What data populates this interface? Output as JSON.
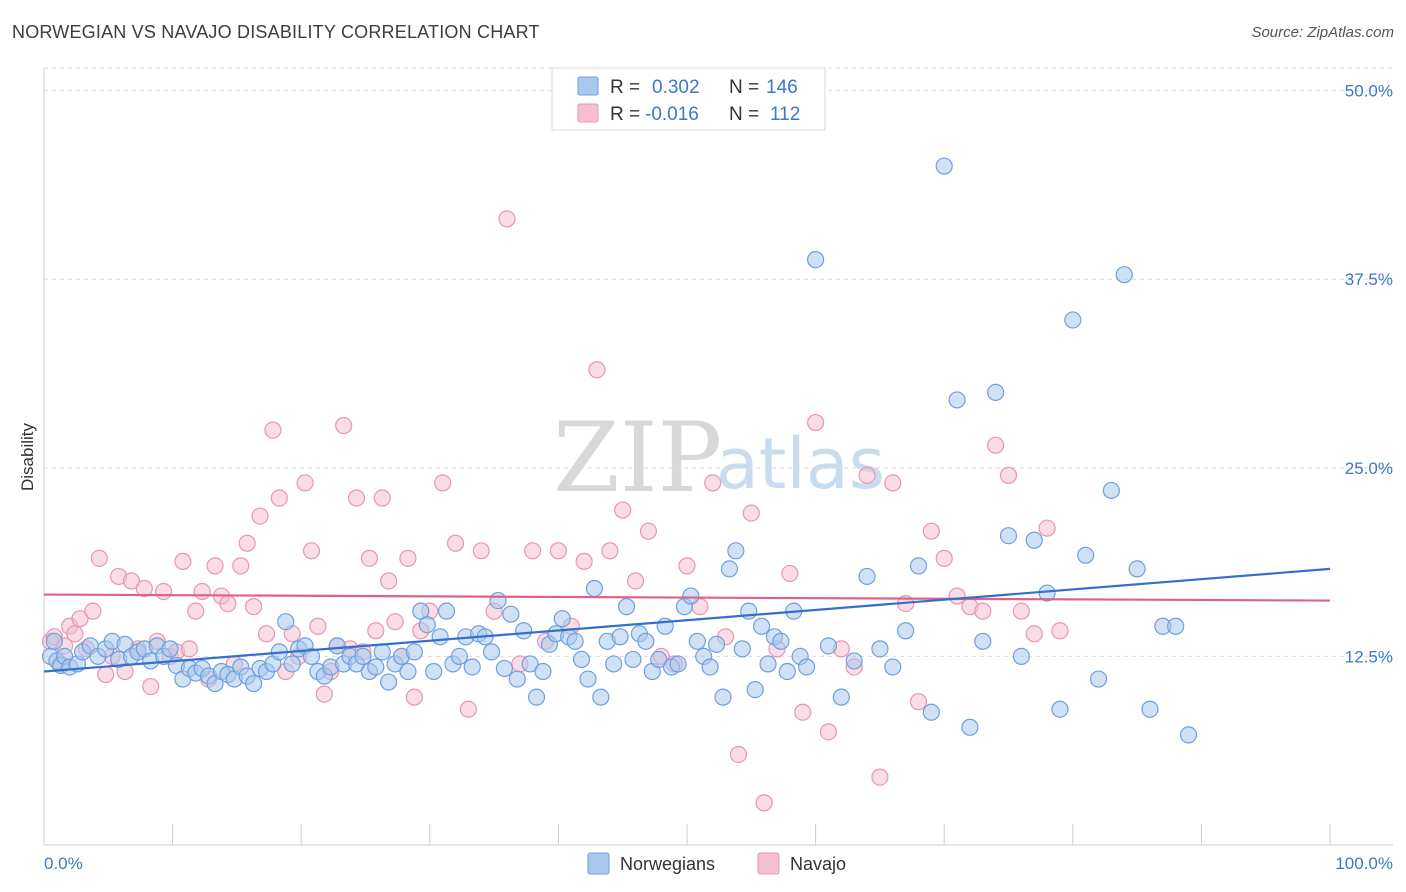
{
  "title": "NORWEGIAN VS NAVAJO DISABILITY CORRELATION CHART",
  "source": "Source: ZipAtlas.com",
  "watermark": {
    "zip": "ZIP",
    "atlas": "atlas"
  },
  "chart_data": {
    "type": "scatter",
    "ylabel": "Disability",
    "x_min_label": "0.0%",
    "x_max_label": "100.0%",
    "xlim": [
      0,
      100
    ],
    "ylim": [
      0,
      51.5
    ],
    "yticks": [
      {
        "value": 12.5,
        "label": "12.5%"
      },
      {
        "value": 25.0,
        "label": "25.0%"
      },
      {
        "value": 37.5,
        "label": "37.5%"
      },
      {
        "value": 50.0,
        "label": "50.0%"
      }
    ],
    "legend_stats": [
      {
        "r_label": "R =",
        "r_value": "0.302",
        "n_label": "N =",
        "n_value": "146",
        "color": "#5b9bd5",
        "fill": "#b7d3f2"
      },
      {
        "r_label": "R =",
        "r_value": "-0.016",
        "n_label": "N =",
        "n_value": "112",
        "color": "#e8799c",
        "fill": "#f7c1d2"
      }
    ],
    "series": [
      {
        "name": "Norwegians",
        "color": "#3370cc",
        "point_fill": "#aac8ee",
        "point_stroke": "#6f9fdc",
        "trend": {
          "x": [
            0,
            100
          ],
          "y": [
            11.5,
            18.3
          ]
        },
        "points": [
          [
            0.5,
            12.5
          ],
          [
            0.8,
            13.5
          ],
          [
            1.0,
            12.2
          ],
          [
            1.3,
            11.9
          ],
          [
            1.6,
            12.5
          ],
          [
            2.0,
            11.8
          ],
          [
            2.6,
            12.0
          ],
          [
            3.0,
            12.8
          ],
          [
            3.6,
            13.2
          ],
          [
            4.2,
            12.5
          ],
          [
            4.8,
            13.0
          ],
          [
            5.3,
            13.5
          ],
          [
            5.8,
            12.3
          ],
          [
            6.3,
            13.3
          ],
          [
            6.8,
            12.5
          ],
          [
            7.3,
            12.8
          ],
          [
            7.8,
            13.0
          ],
          [
            8.3,
            12.2
          ],
          [
            8.8,
            13.2
          ],
          [
            9.3,
            12.5
          ],
          [
            9.8,
            13.0
          ],
          [
            10.3,
            11.9
          ],
          [
            10.8,
            11.0
          ],
          [
            11.3,
            11.7
          ],
          [
            11.8,
            11.4
          ],
          [
            12.3,
            11.7
          ],
          [
            12.8,
            11.2
          ],
          [
            13.3,
            10.7
          ],
          [
            13.8,
            11.5
          ],
          [
            14.3,
            11.3
          ],
          [
            14.8,
            11.0
          ],
          [
            15.3,
            11.8
          ],
          [
            15.8,
            11.2
          ],
          [
            16.3,
            10.7
          ],
          [
            16.8,
            11.7
          ],
          [
            17.3,
            11.5
          ],
          [
            17.8,
            12.0
          ],
          [
            18.3,
            12.8
          ],
          [
            18.8,
            14.8
          ],
          [
            19.3,
            12.0
          ],
          [
            19.8,
            13.0
          ],
          [
            20.3,
            13.2
          ],
          [
            20.8,
            12.5
          ],
          [
            21.3,
            11.5
          ],
          [
            21.8,
            11.2
          ],
          [
            22.3,
            11.8
          ],
          [
            22.8,
            13.2
          ],
          [
            23.3,
            12.0
          ],
          [
            23.8,
            12.5
          ],
          [
            24.3,
            12.0
          ],
          [
            24.8,
            12.5
          ],
          [
            25.3,
            11.5
          ],
          [
            25.8,
            11.8
          ],
          [
            26.3,
            12.8
          ],
          [
            26.8,
            10.8
          ],
          [
            27.3,
            12.0
          ],
          [
            27.8,
            12.5
          ],
          [
            28.3,
            11.5
          ],
          [
            28.8,
            12.8
          ],
          [
            29.3,
            15.5
          ],
          [
            29.8,
            14.6
          ],
          [
            30.3,
            11.5
          ],
          [
            30.8,
            13.8
          ],
          [
            31.3,
            15.5
          ],
          [
            31.8,
            12.0
          ],
          [
            32.3,
            12.5
          ],
          [
            32.8,
            13.8
          ],
          [
            33.3,
            11.8
          ],
          [
            33.8,
            14.0
          ],
          [
            34.3,
            13.8
          ],
          [
            34.8,
            12.8
          ],
          [
            35.3,
            16.2
          ],
          [
            35.8,
            11.7
          ],
          [
            36.3,
            15.3
          ],
          [
            36.8,
            11.0
          ],
          [
            37.3,
            14.2
          ],
          [
            37.8,
            12.0
          ],
          [
            38.3,
            9.8
          ],
          [
            38.8,
            11.5
          ],
          [
            39.3,
            13.3
          ],
          [
            39.8,
            14.0
          ],
          [
            40.3,
            15.0
          ],
          [
            40.8,
            13.8
          ],
          [
            41.3,
            13.5
          ],
          [
            41.8,
            12.3
          ],
          [
            42.3,
            11.0
          ],
          [
            42.8,
            17.0
          ],
          [
            43.3,
            9.8
          ],
          [
            43.8,
            13.5
          ],
          [
            44.3,
            12.0
          ],
          [
            44.8,
            13.8
          ],
          [
            45.3,
            15.8
          ],
          [
            45.8,
            12.3
          ],
          [
            46.3,
            14.0
          ],
          [
            46.8,
            13.5
          ],
          [
            47.3,
            11.5
          ],
          [
            47.8,
            12.3
          ],
          [
            48.3,
            14.5
          ],
          [
            48.8,
            11.8
          ],
          [
            49.3,
            12.0
          ],
          [
            49.8,
            15.8
          ],
          [
            50.3,
            16.5
          ],
          [
            50.8,
            13.5
          ],
          [
            51.3,
            12.5
          ],
          [
            51.8,
            11.8
          ],
          [
            52.3,
            13.3
          ],
          [
            52.8,
            9.8
          ],
          [
            53.3,
            18.3
          ],
          [
            53.8,
            19.5
          ],
          [
            54.3,
            13.0
          ],
          [
            54.8,
            15.5
          ],
          [
            55.3,
            10.3
          ],
          [
            55.8,
            14.5
          ],
          [
            56.3,
            12.0
          ],
          [
            56.8,
            13.8
          ],
          [
            57.3,
            13.5
          ],
          [
            57.8,
            11.5
          ],
          [
            58.3,
            15.5
          ],
          [
            58.8,
            12.5
          ],
          [
            59.3,
            11.8
          ],
          [
            60.0,
            38.8
          ],
          [
            61.0,
            13.2
          ],
          [
            62.0,
            9.8
          ],
          [
            63.0,
            12.2
          ],
          [
            64.0,
            17.8
          ],
          [
            65.0,
            13.0
          ],
          [
            66.0,
            11.8
          ],
          [
            67.0,
            14.2
          ],
          [
            68.0,
            18.5
          ],
          [
            69.0,
            8.8
          ],
          [
            70.0,
            45.0
          ],
          [
            71.0,
            29.5
          ],
          [
            72.0,
            7.8
          ],
          [
            73.0,
            13.5
          ],
          [
            74.0,
            30.0
          ],
          [
            75.0,
            20.5
          ],
          [
            76.0,
            12.5
          ],
          [
            77.0,
            20.2
          ],
          [
            78.0,
            16.7
          ],
          [
            79.0,
            9.0
          ],
          [
            80.0,
            34.8
          ],
          [
            81.0,
            19.2
          ],
          [
            82.0,
            11.0
          ],
          [
            83.0,
            23.5
          ],
          [
            84.0,
            37.8
          ],
          [
            85.0,
            18.3
          ],
          [
            86.0,
            9.0
          ],
          [
            87.0,
            14.5
          ],
          [
            88.0,
            14.5
          ],
          [
            89.0,
            7.3
          ]
        ]
      },
      {
        "name": "Navajo",
        "color": "#e0608a",
        "point_fill": "#f4c0d0",
        "point_stroke": "#e896b0",
        "trend": {
          "x": [
            0,
            100
          ],
          "y": [
            16.6,
            16.2
          ]
        },
        "points": [
          [
            0.5,
            13.5
          ],
          [
            0.8,
            13.8
          ],
          [
            1.3,
            12.0
          ],
          [
            1.6,
            13.2
          ],
          [
            2.0,
            14.5
          ],
          [
            2.4,
            14.0
          ],
          [
            2.8,
            15.0
          ],
          [
            3.3,
            13.0
          ],
          [
            3.8,
            15.5
          ],
          [
            4.3,
            19.0
          ],
          [
            4.8,
            11.3
          ],
          [
            5.3,
            12.5
          ],
          [
            5.8,
            17.8
          ],
          [
            6.3,
            11.5
          ],
          [
            6.8,
            17.5
          ],
          [
            7.3,
            13.0
          ],
          [
            7.8,
            17.0
          ],
          [
            8.3,
            10.5
          ],
          [
            8.8,
            13.5
          ],
          [
            9.3,
            16.8
          ],
          [
            9.8,
            12.5
          ],
          [
            10.3,
            12.8
          ],
          [
            10.8,
            18.8
          ],
          [
            11.3,
            13.0
          ],
          [
            11.8,
            15.5
          ],
          [
            12.3,
            16.8
          ],
          [
            12.8,
            11.0
          ],
          [
            13.3,
            18.5
          ],
          [
            13.8,
            16.5
          ],
          [
            14.3,
            16.0
          ],
          [
            14.8,
            12.0
          ],
          [
            15.3,
            18.5
          ],
          [
            15.8,
            20.0
          ],
          [
            16.3,
            15.8
          ],
          [
            16.8,
            21.8
          ],
          [
            17.3,
            14.0
          ],
          [
            17.8,
            27.5
          ],
          [
            18.3,
            23.0
          ],
          [
            18.8,
            11.5
          ],
          [
            19.3,
            14.0
          ],
          [
            19.8,
            12.5
          ],
          [
            20.3,
            24.0
          ],
          [
            20.8,
            19.5
          ],
          [
            21.3,
            14.5
          ],
          [
            21.8,
            10.0
          ],
          [
            22.3,
            11.5
          ],
          [
            22.8,
            13.2
          ],
          [
            23.3,
            27.8
          ],
          [
            23.8,
            13.0
          ],
          [
            24.3,
            23.0
          ],
          [
            24.8,
            12.8
          ],
          [
            25.3,
            19.0
          ],
          [
            25.8,
            14.2
          ],
          [
            26.3,
            23.0
          ],
          [
            26.8,
            17.5
          ],
          [
            27.3,
            14.8
          ],
          [
            27.8,
            12.5
          ],
          [
            28.3,
            19.0
          ],
          [
            28.8,
            9.8
          ],
          [
            29.3,
            14.2
          ],
          [
            30.0,
            15.5
          ],
          [
            31.0,
            24.0
          ],
          [
            32.0,
            20.0
          ],
          [
            33.0,
            9.0
          ],
          [
            34.0,
            19.5
          ],
          [
            35.0,
            15.5
          ],
          [
            36.0,
            41.5
          ],
          [
            37.0,
            12.0
          ],
          [
            38.0,
            19.5
          ],
          [
            39.0,
            13.5
          ],
          [
            40.0,
            19.5
          ],
          [
            41.0,
            14.5
          ],
          [
            42.0,
            18.8
          ],
          [
            43.0,
            31.5
          ],
          [
            44.0,
            19.5
          ],
          [
            45.0,
            22.2
          ],
          [
            46.0,
            17.5
          ],
          [
            47.0,
            20.8
          ],
          [
            48.0,
            12.5
          ],
          [
            49.0,
            12.0
          ],
          [
            50.0,
            18.5
          ],
          [
            51.0,
            15.8
          ],
          [
            52.0,
            24.0
          ],
          [
            53.0,
            13.8
          ],
          [
            54.0,
            6.0
          ],
          [
            55.0,
            22.0
          ],
          [
            56.0,
            2.8
          ],
          [
            57.0,
            13.0
          ],
          [
            58.0,
            18.0
          ],
          [
            59.0,
            8.8
          ],
          [
            60.0,
            28.0
          ],
          [
            61.0,
            7.5
          ],
          [
            62.0,
            13.0
          ],
          [
            63.0,
            11.8
          ],
          [
            64.0,
            24.5
          ],
          [
            65.0,
            4.5
          ],
          [
            66.0,
            24.0
          ],
          [
            67.0,
            16.0
          ],
          [
            68.0,
            9.5
          ],
          [
            69.0,
            20.8
          ],
          [
            70.0,
            19.0
          ],
          [
            71.0,
            16.5
          ],
          [
            72.0,
            15.8
          ],
          [
            73.0,
            15.5
          ],
          [
            74.0,
            26.5
          ],
          [
            75.0,
            24.5
          ],
          [
            76.0,
            15.5
          ],
          [
            77.0,
            14.0
          ],
          [
            78.0,
            21.0
          ],
          [
            79.0,
            14.2
          ]
        ]
      }
    ]
  }
}
